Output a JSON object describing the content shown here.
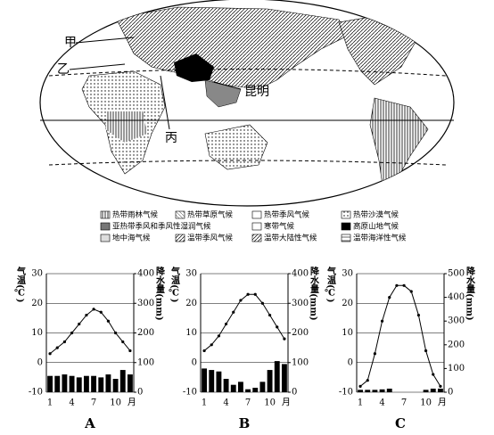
{
  "map": {
    "labels": [
      "甲",
      "乙",
      "丙",
      "昆明"
    ]
  },
  "legend": [
    "热带雨林气候",
    "热带草原气候",
    "热带季风气候",
    "热带沙漠气候",
    "亚热带季风和季风性湿润气候",
    "寒带气候",
    "高原山地气候",
    "地中海气候",
    "温带季风气候",
    "温带大陆性气候",
    "温带海洋性气候"
  ],
  "chart_data": [
    {
      "type": "climate",
      "caption": "A",
      "ylabel": "气温(℃)",
      "y2label": "降水量(mm)",
      "categories": [
        "1",
        null,
        null,
        "4",
        null,
        null,
        "7",
        null,
        null,
        "10",
        null,
        null
      ],
      "x_unit": "月",
      "ylim": [
        -10,
        30
      ],
      "yticks": [
        -10,
        0,
        10,
        20,
        30
      ],
      "y2lim": [
        0,
        400
      ],
      "y2ticks": [
        0,
        100,
        200,
        300,
        400
      ],
      "series": [
        {
          "type": "line",
          "color": "#000000",
          "values": [
            3,
            5,
            7,
            10,
            13,
            16,
            18,
            17,
            14,
            10,
            7,
            4
          ]
        },
        {
          "type": "bar",
          "axis": "y2",
          "color": "#000000",
          "values": [
            55,
            55,
            60,
            55,
            50,
            55,
            55,
            50,
            60,
            45,
            75,
            60
          ]
        }
      ]
    },
    {
      "type": "climate",
      "caption": "B",
      "ylabel": "气温(℃)",
      "y2label": "降水量(mm)",
      "categories": [
        "1",
        null,
        null,
        "4",
        null,
        null,
        "7",
        null,
        null,
        "10",
        null,
        null
      ],
      "x_unit": "月",
      "ylim": [
        -10,
        30
      ],
      "yticks": [
        -10,
        0,
        10,
        20,
        30
      ],
      "y2lim": [
        0,
        400
      ],
      "y2ticks": [
        0,
        100,
        200,
        300,
        400
      ],
      "series": [
        {
          "type": "line",
          "color": "#000000",
          "values": [
            4,
            6,
            9,
            13,
            17,
            21,
            23,
            23,
            20,
            16,
            12,
            8
          ]
        },
        {
          "type": "bar",
          "axis": "y2",
          "color": "#000000",
          "values": [
            80,
            75,
            70,
            45,
            25,
            35,
            10,
            15,
            35,
            75,
            105,
            95
          ]
        }
      ]
    },
    {
      "type": "climate",
      "caption": "C",
      "ylabel": "气温(℃)",
      "y2label": "降水量(mm)",
      "categories": [
        "1",
        null,
        null,
        "4",
        null,
        null,
        "7",
        null,
        null,
        "10",
        null,
        null
      ],
      "x_unit": "月",
      "ylim": [
        -10,
        30
      ],
      "yticks": [
        -10,
        0,
        10,
        20,
        30
      ],
      "y2lim": [
        0,
        500
      ],
      "y2ticks": [
        0,
        100,
        200,
        300,
        400,
        500
      ],
      "series": [
        {
          "type": "line",
          "color": "#000000",
          "values": [
            -8,
            -6,
            3,
            14,
            22,
            26,
            26,
            24,
            16,
            4,
            -4,
            -8
          ]
        },
        {
          "type": "bar",
          "axis": "y2",
          "color": "#000000",
          "values": [
            10,
            10,
            10,
            12,
            15,
            0,
            0,
            0,
            0,
            10,
            15,
            15
          ]
        }
      ]
    }
  ]
}
